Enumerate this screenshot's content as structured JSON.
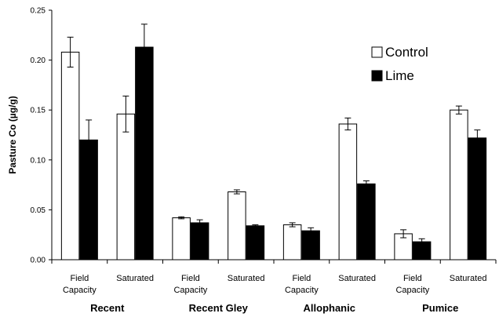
{
  "chart_data": {
    "type": "bar",
    "ylabel": "Pasture Co (µg/g)",
    "ylim": [
      0,
      0.25
    ],
    "yticks": [
      "0.00",
      "0.05",
      "0.10",
      "0.15",
      "0.20",
      "0.25"
    ],
    "groups": [
      "Recent",
      "Recent Gley",
      "Allophanic",
      "Pumice"
    ],
    "categories": [
      {
        "line1": "Field",
        "line2": "Capacity",
        "group": 0
      },
      {
        "line1": "Saturated",
        "line2": "",
        "group": 0
      },
      {
        "line1": "Field",
        "line2": "Capacity",
        "group": 1
      },
      {
        "line1": "Saturated",
        "line2": "",
        "group": 1
      },
      {
        "line1": "Field",
        "line2": "Capacity",
        "group": 2
      },
      {
        "line1": "Saturated",
        "line2": "",
        "group": 2
      },
      {
        "line1": "Field",
        "line2": "Capacity",
        "group": 3
      },
      {
        "line1": "Saturated",
        "line2": "",
        "group": 3
      }
    ],
    "series": [
      {
        "name": "Control",
        "color": "#ffffff",
        "values": [
          0.208,
          0.146,
          0.042,
          0.068,
          0.035,
          0.136,
          0.026,
          0.15
        ],
        "errors": [
          0.015,
          0.018,
          0.001,
          0.002,
          0.002,
          0.006,
          0.004,
          0.004
        ]
      },
      {
        "name": "Lime",
        "color": "#000000",
        "values": [
          0.12,
          0.213,
          0.037,
          0.034,
          0.029,
          0.076,
          0.018,
          0.122
        ],
        "errors": [
          0.02,
          0.023,
          0.003,
          0.001,
          0.003,
          0.003,
          0.003,
          0.008
        ]
      }
    ],
    "legend_position": "top-right",
    "grid": false
  }
}
